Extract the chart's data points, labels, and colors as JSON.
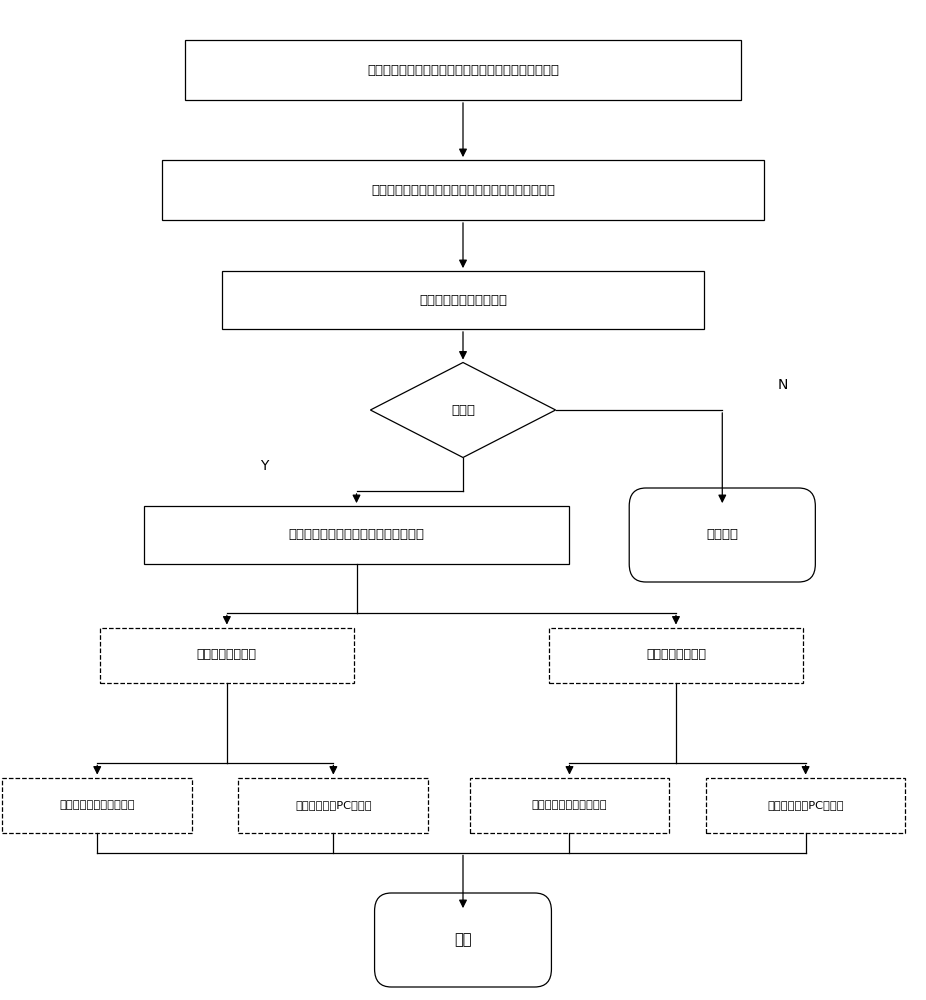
{
  "bg_color": "#ffffff",
  "box_edge": "#000000",
  "nodes": {
    "box1": {
      "text": "设置输入信号物理通道、输入接线端、输入信号的类型"
    },
    "box2": {
      "text": "设置采样模式、采样时钒源、采样率、每通道采样数"
    },
    "box3": {
      "text": "设置触发源、斜率、电平"
    },
    "diamond": {
      "text": "触发？"
    },
    "box4": {
      "text": "读取采样，设置每一次所读取得数据点"
    },
    "box_end_prog": {
      "text": "程序终止"
    },
    "box5": {
      "text": "设置电流衰减系数"
    },
    "box6": {
      "text": "设置电压衰减系数"
    },
    "box7": {
      "text": "显示焊接电流波形图曲线"
    },
    "box8": {
      "text": "电流数据写入PC机内存"
    },
    "box9": {
      "text": "显示焊接电压波形图曲线"
    },
    "box10": {
      "text": "电压数据写入PC机内存"
    },
    "end": {
      "text": "结束"
    }
  },
  "Y_label": "Y",
  "N_label": "N"
}
